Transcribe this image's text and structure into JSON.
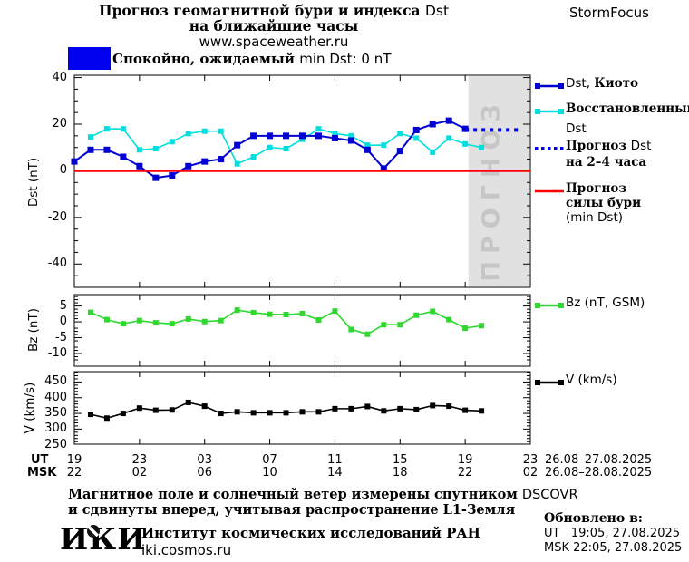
{
  "header": {
    "title_line1_ru": "Прогноз геомагнитной бури и индекса ",
    "title_line1_lat": "Dst",
    "title_line2": "на ближайшие часы",
    "site": "www.spaceweather.ru",
    "brand": "StormFocus"
  },
  "status_banner": {
    "color": "#0000ee",
    "text_ru": "Спокойно, ожидаемый ",
    "text_lat": "min Dst: 0 nT"
  },
  "chart_data": [
    {
      "type": "line",
      "title": "Прогноз геомагнитной бури и индекса Dst",
      "ylabel": "Dst (nT)",
      "ylim": [
        -50,
        41
      ],
      "yticks": [
        40,
        20,
        0,
        -20,
        -40
      ],
      "yminor": 5,
      "xlim_hours_ut": [
        19,
        47
      ],
      "xticks_ut": [
        19,
        23,
        27,
        31,
        35,
        39,
        43,
        47
      ],
      "series": [
        {
          "id": "restored",
          "name": "Восстановленный Dst",
          "color": "#00dfdf",
          "style": "squares",
          "x": [
            20,
            21,
            22,
            23,
            24,
            25,
            26,
            27,
            28,
            29,
            30,
            31,
            32,
            33,
            34,
            35,
            36,
            37,
            38,
            39,
            40,
            41,
            42,
            43,
            44
          ],
          "values": [
            14.5,
            18,
            18,
            9,
            9.5,
            12.5,
            16,
            17,
            17,
            3,
            6,
            10,
            9.5,
            13.5,
            18,
            16,
            15,
            11,
            11,
            16,
            14,
            8,
            14,
            11.5,
            10
          ]
        },
        {
          "id": "kyoto",
          "name": "Dst, Киото",
          "color": "#0000d0",
          "style": "squares-lg",
          "x": [
            19,
            20,
            21,
            22,
            23,
            24,
            25,
            26,
            27,
            28,
            29,
            30,
            31,
            32,
            33,
            34,
            35,
            36,
            37,
            38,
            39,
            40,
            41,
            42,
            43
          ],
          "values": [
            4,
            9,
            9,
            6,
            2,
            -3,
            -2,
            2,
            4,
            5,
            11,
            15,
            15,
            15,
            15,
            15,
            14,
            13,
            9,
            1,
            8.5,
            17.5,
            20,
            21.5,
            18
          ]
        },
        {
          "id": "forecast",
          "name": "Прогноз Dst на 2–4 часа",
          "color": "#0000ee",
          "style": "dotted",
          "x": [
            43,
            46.3
          ],
          "values": [
            17.5,
            17.5
          ]
        },
        {
          "id": "storm",
          "name": "Прогноз силы бури (min Dst)",
          "color": "#ff0000",
          "style": "line",
          "x": [
            19,
            47
          ],
          "values": [
            0,
            0
          ]
        }
      ],
      "forecast_region": {
        "start_hour_ut": 43.2,
        "end_hour_ut": 47,
        "label": "ПРОГНОЗ",
        "fill": "#e1e1e1",
        "label_color": "#c6c6c6"
      }
    },
    {
      "type": "line",
      "ylabel": "Bz (nT)",
      "ylim": [
        -14,
        8.6
      ],
      "yticks": [
        5,
        0,
        -5,
        -10
      ],
      "yminor": 1,
      "series": [
        {
          "id": "bz",
          "name": "Bz (nT, GSM)",
          "color": "#2fd82f",
          "style": "squares",
          "x": [
            20,
            21,
            22,
            23,
            24,
            25,
            26,
            27,
            28,
            29,
            30,
            31,
            32,
            33,
            34,
            35,
            36,
            37,
            38,
            39,
            40,
            41,
            42,
            43,
            44
          ],
          "values": [
            3,
            0.7,
            -0.6,
            0.4,
            -0.3,
            -0.6,
            0.9,
            0.1,
            0.4,
            3.7,
            2.9,
            2.4,
            2.3,
            2.6,
            0.6,
            3.4,
            -2.4,
            -3.9,
            -0.9,
            -0.9,
            2.1,
            3.3,
            0.7,
            -2,
            -1.2
          ]
        }
      ]
    },
    {
      "type": "line",
      "ylabel": "V (km/s)",
      "ylim": [
        252,
        483
      ],
      "yticks": [
        450,
        400,
        350,
        300,
        250
      ],
      "yminor": 10,
      "series": [
        {
          "id": "v",
          "name": "V (km/s)",
          "color": "#000000",
          "style": "squares",
          "x": [
            20,
            21,
            22,
            23,
            24,
            25,
            26,
            27,
            28,
            29,
            30,
            31,
            32,
            33,
            34,
            35,
            36,
            37,
            38,
            39,
            40,
            41,
            42,
            43,
            44
          ],
          "values": [
            347,
            335,
            350,
            367,
            360,
            361,
            385,
            373,
            350,
            355,
            352,
            352,
            352,
            355,
            355,
            365,
            365,
            372,
            358,
            365,
            362,
            375,
            373,
            360,
            358
          ]
        }
      ]
    }
  ],
  "legend_dst": {
    "items": [
      {
        "label_lat": "Dst, ",
        "label_ru": "Киото",
        "color": "#0000d0",
        "style": "squares-lg"
      },
      {
        "line1": "Восстановленный",
        "line2": "Dst",
        "color": "#00dfdf",
        "style": "squares"
      },
      {
        "line1_ru": "Прогноз ",
        "line1_lat": "Dst",
        "line2": "на 2–4 часа",
        "color": "#0000ee",
        "style": "dotted"
      },
      {
        "line1": "Прогноз",
        "line2": "силы бури",
        "line3": "(min Dst)",
        "color": "#ff0000",
        "style": "line"
      }
    ]
  },
  "legend_bz": {
    "label": "Bz (nT, GSM)",
    "color": "#2fd82f",
    "style": "squares"
  },
  "legend_v": {
    "label": "V (km/s)",
    "color": "#000000",
    "style": "squares"
  },
  "xaxis": {
    "row_label_ut": "UT",
    "row_label_msk": "MSK",
    "ut": [
      "19",
      "23",
      "03",
      "07",
      "11",
      "15",
      "19",
      "23"
    ],
    "msk": [
      "22",
      "02",
      "06",
      "10",
      "14",
      "18",
      "22",
      "02"
    ],
    "date_range_ut": "26.08–27.08.2025",
    "date_range_msk": "26.08–28.08.2025"
  },
  "footer": {
    "note1_ru": "Магнитное поле и солнечный ветер измерены спутником ",
    "note1_lat": "DSCOVR",
    "note2": "и сдвинуты вперед, учитывая распространение L1-Земля",
    "updated_label": "Обновлено в:",
    "updated_ut": "UT   19:05, 27.08.2025",
    "updated_msk": "MSK 22:05, 27.08.2025",
    "logo_text": "ИКИ",
    "institute": "Институт космических исследований РАН",
    "institute_site": "iki.cosmos.ru"
  }
}
